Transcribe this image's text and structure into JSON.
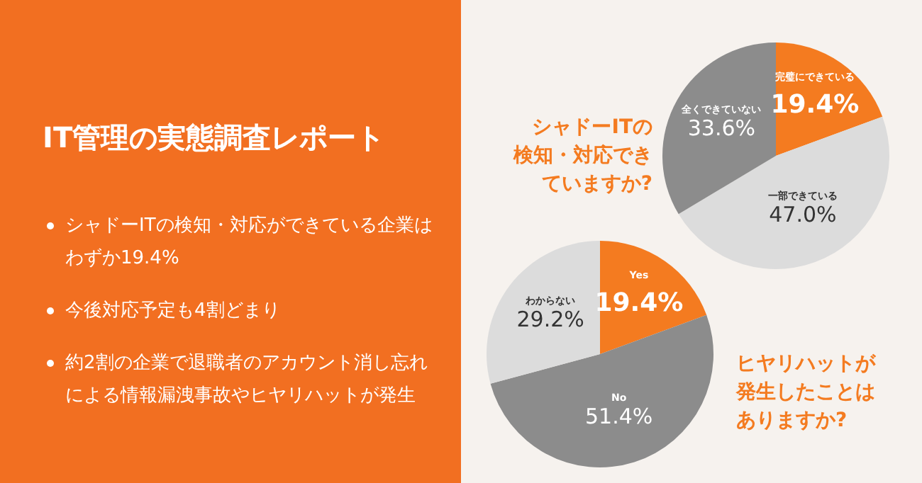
{
  "chart_data": [
    {
      "type": "other",
      "title": "IT管理の実態調査レポート",
      "annotations": [
        "シャドーITの検知・対応ができている企業はわずか19.4%",
        "今後対応予定も4割どまり",
        "約2割の企業で退職者のアカウント消し忘れによる情報漏洩事故やヒヤリハットが発生"
      ]
    },
    {
      "type": "pie",
      "title": "シャドーITの検知・対応できていますか?",
      "categories": [
        "完璧にできている",
        "一部できている",
        "全くできていない"
      ],
      "values": [
        19.4,
        47.0,
        33.6
      ],
      "value_labels": [
        "19.4%",
        "47.0%",
        "33.6%"
      ],
      "colors": [
        "#f47b20",
        "#dcdcdc",
        "#8c8c8c"
      ]
    },
    {
      "type": "pie",
      "title": "ヒヤリハットが発生したことはありますか?",
      "categories": [
        "Yes",
        "No",
        "わからない"
      ],
      "values": [
        19.4,
        51.4,
        29.2
      ],
      "value_labels": [
        "19.4%",
        "51.4%",
        "29.2%"
      ],
      "colors": [
        "#f47b20",
        "#8c8c8c",
        "#dcdcdc"
      ]
    }
  ]
}
